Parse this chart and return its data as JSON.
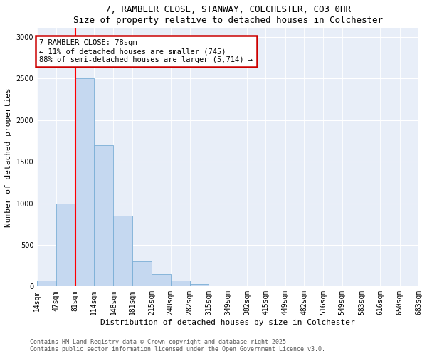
{
  "title1": "7, RAMBLER CLOSE, STANWAY, COLCHESTER, CO3 0HR",
  "title2": "Size of property relative to detached houses in Colchester",
  "xlabel": "Distribution of detached houses by size in Colchester",
  "ylabel": "Number of detached properties",
  "annotation_text": "7 RAMBLER CLOSE: 78sqm\n← 11% of detached houses are smaller (745)\n88% of semi-detached houses are larger (5,714) →",
  "footer1": "Contains HM Land Registry data © Crown copyright and database right 2025.",
  "footer2": "Contains public sector information licensed under the Open Government Licence v3.0.",
  "bin_edges": [
    14,
    47,
    81,
    114,
    148,
    181,
    215,
    248,
    282,
    315,
    349,
    382,
    415,
    449,
    482,
    516,
    549,
    583,
    616,
    650,
    683
  ],
  "bar_heights": [
    75,
    1000,
    2500,
    1700,
    850,
    300,
    150,
    75,
    30,
    0,
    0,
    0,
    0,
    0,
    0,
    0,
    0,
    0,
    0,
    0
  ],
  "bar_color": "#c5d8f0",
  "bar_edge_color": "#7aaed6",
  "red_line_x": 81,
  "annotation_box_color": "#ffffff",
  "annotation_box_edge": "#cc0000",
  "background_color": "#e8eef8",
  "ylim": [
    0,
    3100
  ],
  "yticks": [
    0,
    500,
    1000,
    1500,
    2000,
    2500,
    3000
  ],
  "tick_labels": [
    "14sqm",
    "47sqm",
    "81sqm",
    "114sqm",
    "148sqm",
    "181sqm",
    "215sqm",
    "248sqm",
    "282sqm",
    "315sqm",
    "349sqm",
    "382sqm",
    "415sqm",
    "449sqm",
    "482sqm",
    "516sqm",
    "549sqm",
    "583sqm",
    "616sqm",
    "650sqm",
    "683sqm"
  ],
  "title_fontsize": 9,
  "label_fontsize": 8,
  "tick_fontsize": 7,
  "footer_fontsize": 6
}
